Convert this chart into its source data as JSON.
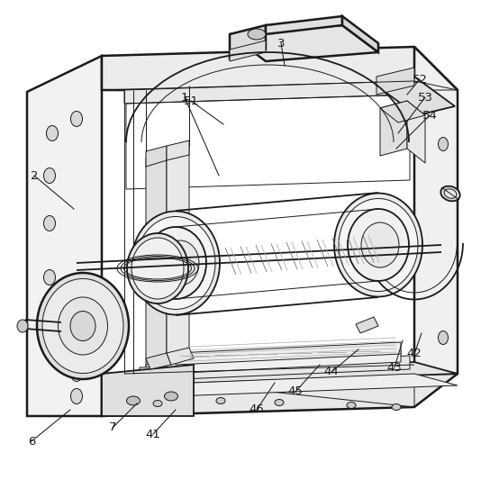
{
  "bg_color": "#ffffff",
  "line_color": "#1a1a1a",
  "label_color": "#1a1a1a",
  "lw_main": 1.3,
  "lw_thin": 0.7,
  "lw_thick": 1.8,
  "leaders": [
    [
      "1",
      243,
      195,
      205,
      108
    ],
    [
      "2",
      82,
      232,
      38,
      195
    ],
    [
      "3",
      316,
      73,
      312,
      48
    ],
    [
      "6",
      78,
      455,
      35,
      490
    ],
    [
      "7",
      152,
      448,
      125,
      475
    ],
    [
      "41",
      195,
      455,
      170,
      482
    ],
    [
      "42",
      468,
      370,
      460,
      393
    ],
    [
      "43",
      447,
      378,
      438,
      408
    ],
    [
      "44",
      398,
      388,
      368,
      413
    ],
    [
      "45",
      355,
      405,
      328,
      435
    ],
    [
      "46",
      305,
      425,
      285,
      455
    ],
    [
      "51",
      248,
      138,
      212,
      112
    ],
    [
      "52",
      452,
      105,
      466,
      88
    ],
    [
      "53",
      442,
      148,
      472,
      108
    ],
    [
      "54",
      440,
      165,
      477,
      128
    ]
  ]
}
